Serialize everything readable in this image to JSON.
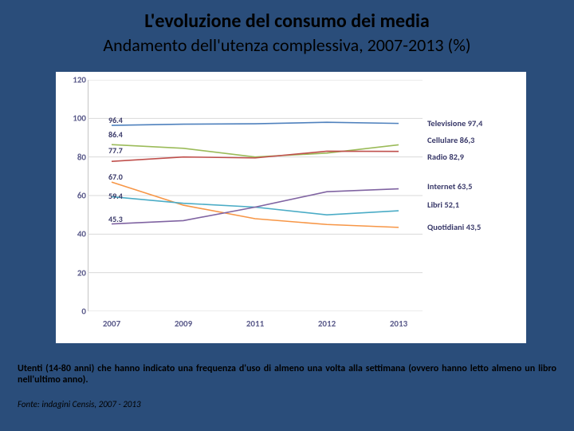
{
  "title": "L'evoluzione del consumo dei media",
  "subtitle": "Andamento dell'utenza complessiva, 2007-2013 (%)",
  "note": "Utenti (14-80 anni) che hanno indicato una frequenza d'uso di almeno una volta alla settimana (ovvero hanno letto almeno un libro nell'ultimo anno).",
  "source": "Fonte: indagini Censis, 2007 - 2013",
  "chart": {
    "type": "line",
    "background_color": "#ffffff",
    "grid_color": "#d9d9d9",
    "ylim": [
      0,
      120
    ],
    "ytick_step": 20,
    "yticks": [
      0,
      20,
      40,
      60,
      80,
      100,
      120
    ],
    "x_categories": [
      "2007",
      "2009",
      "2011",
      "2012",
      "2013"
    ],
    "series": [
      {
        "name": "Televisione",
        "color": "#4f81bd",
        "width": 1.6,
        "values": [
          96.4,
          97.0,
          97.2,
          98.0,
          97.4
        ],
        "start_label": "96.4",
        "end_label": "Televisione  97,4"
      },
      {
        "name": "Cellulare",
        "color": "#9bbb59",
        "width": 1.6,
        "values": [
          86.4,
          84.5,
          80.0,
          82.0,
          86.3
        ],
        "start_label": "86.4",
        "end_label": "Cellulare  86,3"
      },
      {
        "name": "Radio",
        "color": "#c0504d",
        "width": 1.6,
        "values": [
          77.7,
          80.0,
          79.5,
          83.0,
          82.9
        ],
        "start_label": "77.7",
        "end_label": "Radio  82,9"
      },
      {
        "name": "Quotidiani",
        "color": "#f79646",
        "width": 1.6,
        "values": [
          67.0,
          55.0,
          48.0,
          45.0,
          43.5
        ],
        "start_label": "67.0",
        "end_label": "Quotidiani  43,5"
      },
      {
        "name": "Libri",
        "color": "#4bacc6",
        "width": 1.6,
        "values": [
          59.4,
          56.0,
          54.0,
          50.0,
          52.1
        ],
        "start_label": "59.4",
        "end_label": "Libri  52,1"
      },
      {
        "name": "Internet",
        "color": "#8064a2",
        "width": 1.6,
        "values": [
          45.3,
          47.0,
          54.0,
          62.0,
          63.5
        ],
        "start_label": "45.3",
        "end_label": "Internet  63,5"
      }
    ],
    "end_label_order": [
      "Televisione",
      "Cellulare",
      "Radio",
      "Internet",
      "Libri",
      "Quotidiani"
    ],
    "start_labels_layout": [
      {
        "text": "96.4",
        "y": 96.4
      },
      {
        "text": "86.4",
        "y": 89.0
      },
      {
        "text": "77.7",
        "y": 80.5
      },
      {
        "text": "67.0",
        "y": 67.0
      },
      {
        "text": "59.4",
        "y": 57.0
      },
      {
        "text": "45.3",
        "y": 45.3
      }
    ],
    "end_labels_layout": [
      {
        "text": "Televisione  97,4",
        "y": 97.4
      },
      {
        "text": "Cellulare  86,3",
        "y": 88.5
      },
      {
        "text": "Radio  82,9",
        "y": 80.0
      },
      {
        "text": "Internet  63,5",
        "y": 64.5
      },
      {
        "text": "Libri  52,1",
        "y": 55.0
      },
      {
        "text": "Quotidiani  43,5",
        "y": 43.5
      }
    ],
    "label_fontsize": 11,
    "tick_font_color": "#5a5a8a"
  }
}
